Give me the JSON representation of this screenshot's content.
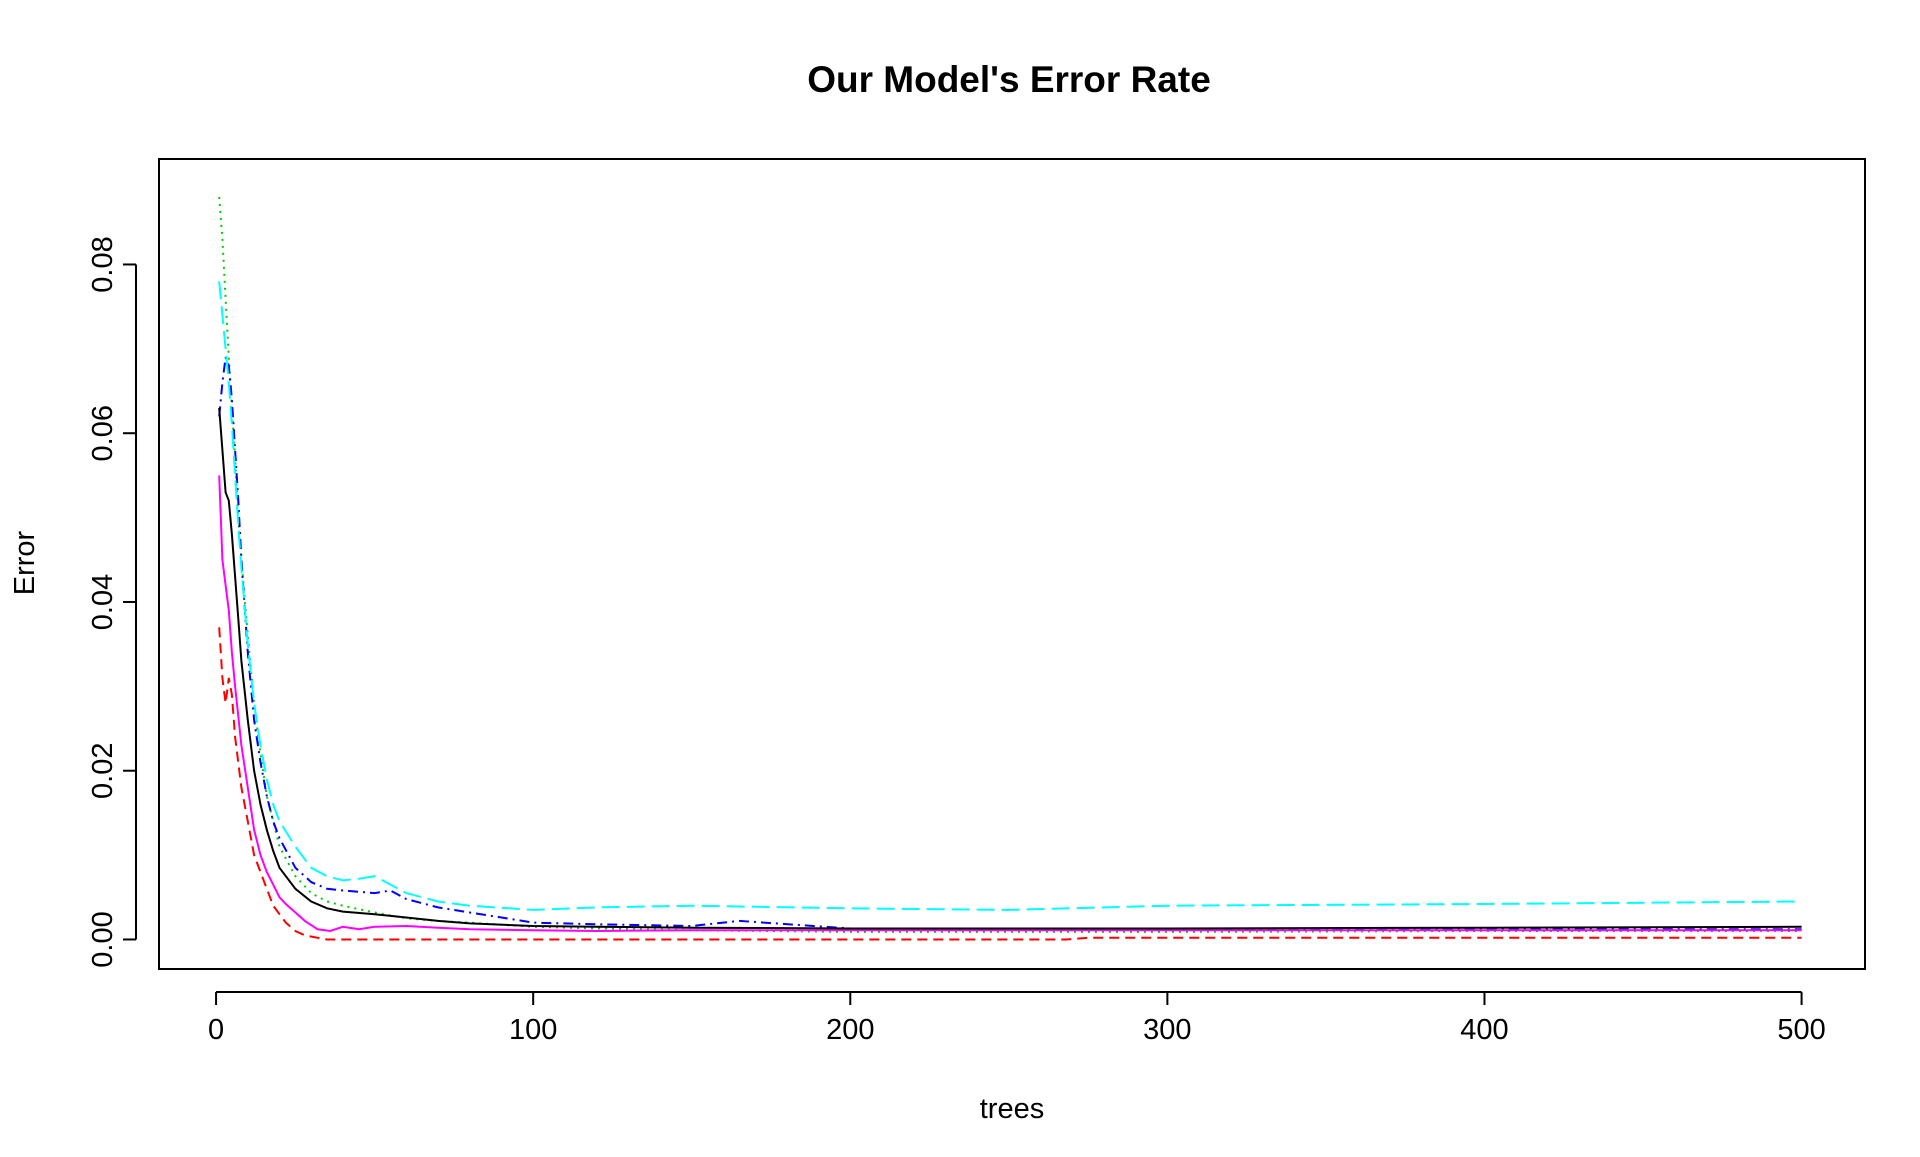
{
  "chart_data": {
    "type": "line",
    "title": "Our Model's Error Rate",
    "xlabel": "trees",
    "ylabel": "Error",
    "xlim": [
      -18,
      520
    ],
    "ylim": [
      -0.0035,
      0.0925
    ],
    "xticks": [
      0,
      100,
      200,
      300,
      400,
      500
    ],
    "yticks": [
      0.0,
      0.02,
      0.04,
      0.06,
      0.08
    ],
    "xtick_labels": [
      "0",
      "100",
      "200",
      "300",
      "400",
      "500"
    ],
    "ytick_labels": [
      "0.00",
      "0.02",
      "0.04",
      "0.06",
      "0.08"
    ],
    "grid": false,
    "legend": "none",
    "series": [
      {
        "color": "#ff0000",
        "dash": "dashed",
        "x": [
          1,
          2,
          3,
          4,
          5,
          6,
          8,
          10,
          12,
          14,
          16,
          18,
          20,
          22,
          25,
          28,
          32,
          35,
          40,
          60,
          100,
          200,
          268,
          275,
          300,
          400,
          500
        ],
        "y": [
          0.037,
          0.031,
          0.028,
          0.031,
          0.029,
          0.024,
          0.018,
          0.014,
          0.01,
          0.008,
          0.006,
          0.004,
          0.003,
          0.002,
          0.001,
          0.0005,
          0.0002,
          0.0,
          0.0,
          0.0,
          0.0,
          0.0,
          0.0,
          0.0002,
          0.0002,
          0.0002,
          0.0002
        ]
      },
      {
        "color": "#00cd00",
        "dash": "dotted",
        "x": [
          1,
          2,
          3,
          4,
          5,
          6,
          7,
          8,
          10,
          12,
          14,
          16,
          18,
          20,
          25,
          30,
          35,
          40,
          50,
          60,
          70,
          80,
          100,
          120,
          150,
          200,
          300,
          400,
          500
        ],
        "y": [
          0.088,
          0.083,
          0.076,
          0.069,
          0.063,
          0.057,
          0.05,
          0.045,
          0.036,
          0.028,
          0.022,
          0.017,
          0.014,
          0.011,
          0.0075,
          0.0055,
          0.0045,
          0.004,
          0.0032,
          0.0025,
          0.0022,
          0.002,
          0.0015,
          0.0013,
          0.0011,
          0.0009,
          0.0009,
          0.001,
          0.001
        ]
      },
      {
        "color": "#0000ff",
        "dash": "dashdot",
        "x": [
          1,
          2,
          3,
          4,
          5,
          6,
          7,
          8,
          10,
          12,
          14,
          16,
          18,
          20,
          25,
          30,
          35,
          40,
          50,
          55,
          60,
          70,
          80,
          90,
          100,
          120,
          150,
          165,
          200,
          250,
          300,
          400,
          500
        ],
        "y": [
          0.062,
          0.066,
          0.069,
          0.068,
          0.064,
          0.058,
          0.052,
          0.045,
          0.034,
          0.026,
          0.021,
          0.017,
          0.014,
          0.012,
          0.0085,
          0.0068,
          0.006,
          0.0058,
          0.0055,
          0.0058,
          0.0048,
          0.0038,
          0.0032,
          0.0026,
          0.002,
          0.0018,
          0.0016,
          0.0022,
          0.0013,
          0.0012,
          0.0012,
          0.0012,
          0.0012
        ]
      },
      {
        "color": "#00ffff",
        "dash": "longdash",
        "x": [
          1,
          2,
          3,
          4,
          5,
          6,
          7,
          8,
          10,
          12,
          14,
          16,
          18,
          20,
          25,
          30,
          35,
          40,
          45,
          50,
          55,
          60,
          70,
          80,
          100,
          120,
          150,
          200,
          250,
          300,
          400,
          500
        ],
        "y": [
          0.078,
          0.074,
          0.07,
          0.066,
          0.061,
          0.055,
          0.049,
          0.044,
          0.035,
          0.028,
          0.023,
          0.019,
          0.016,
          0.014,
          0.011,
          0.0085,
          0.0075,
          0.007,
          0.0072,
          0.0075,
          0.0065,
          0.0055,
          0.0045,
          0.004,
          0.0035,
          0.0038,
          0.004,
          0.0037,
          0.0035,
          0.004,
          0.0042,
          0.0045
        ]
      },
      {
        "color": "#ff00ff",
        "dash": "solid",
        "x": [
          1,
          2,
          3,
          4,
          5,
          6,
          8,
          10,
          12,
          14,
          16,
          18,
          20,
          22,
          25,
          28,
          32,
          36,
          40,
          45,
          50,
          60,
          70,
          80,
          100,
          120,
          150,
          200,
          300,
          400,
          500
        ],
        "y": [
          0.055,
          0.045,
          0.042,
          0.039,
          0.034,
          0.03,
          0.023,
          0.018,
          0.013,
          0.01,
          0.008,
          0.0065,
          0.005,
          0.0042,
          0.0032,
          0.0022,
          0.0012,
          0.001,
          0.0015,
          0.0012,
          0.0015,
          0.0016,
          0.0014,
          0.0012,
          0.0011,
          0.001,
          0.0011,
          0.0011,
          0.0011,
          0.0011,
          0.0011
        ]
      },
      {
        "color": "#000000",
        "dash": "solid",
        "x": [
          1,
          2,
          3,
          4,
          5,
          6,
          7,
          8,
          10,
          12,
          14,
          16,
          18,
          20,
          25,
          30,
          35,
          40,
          50,
          60,
          70,
          80,
          100,
          120,
          150,
          200,
          300,
          400,
          500
        ],
        "y": [
          0.063,
          0.058,
          0.053,
          0.052,
          0.048,
          0.043,
          0.038,
          0.033,
          0.026,
          0.02,
          0.016,
          0.013,
          0.0105,
          0.0085,
          0.006,
          0.0045,
          0.0037,
          0.0033,
          0.003,
          0.0026,
          0.0022,
          0.0019,
          0.0016,
          0.0015,
          0.0014,
          0.0013,
          0.0013,
          0.0014,
          0.0015
        ]
      }
    ]
  }
}
